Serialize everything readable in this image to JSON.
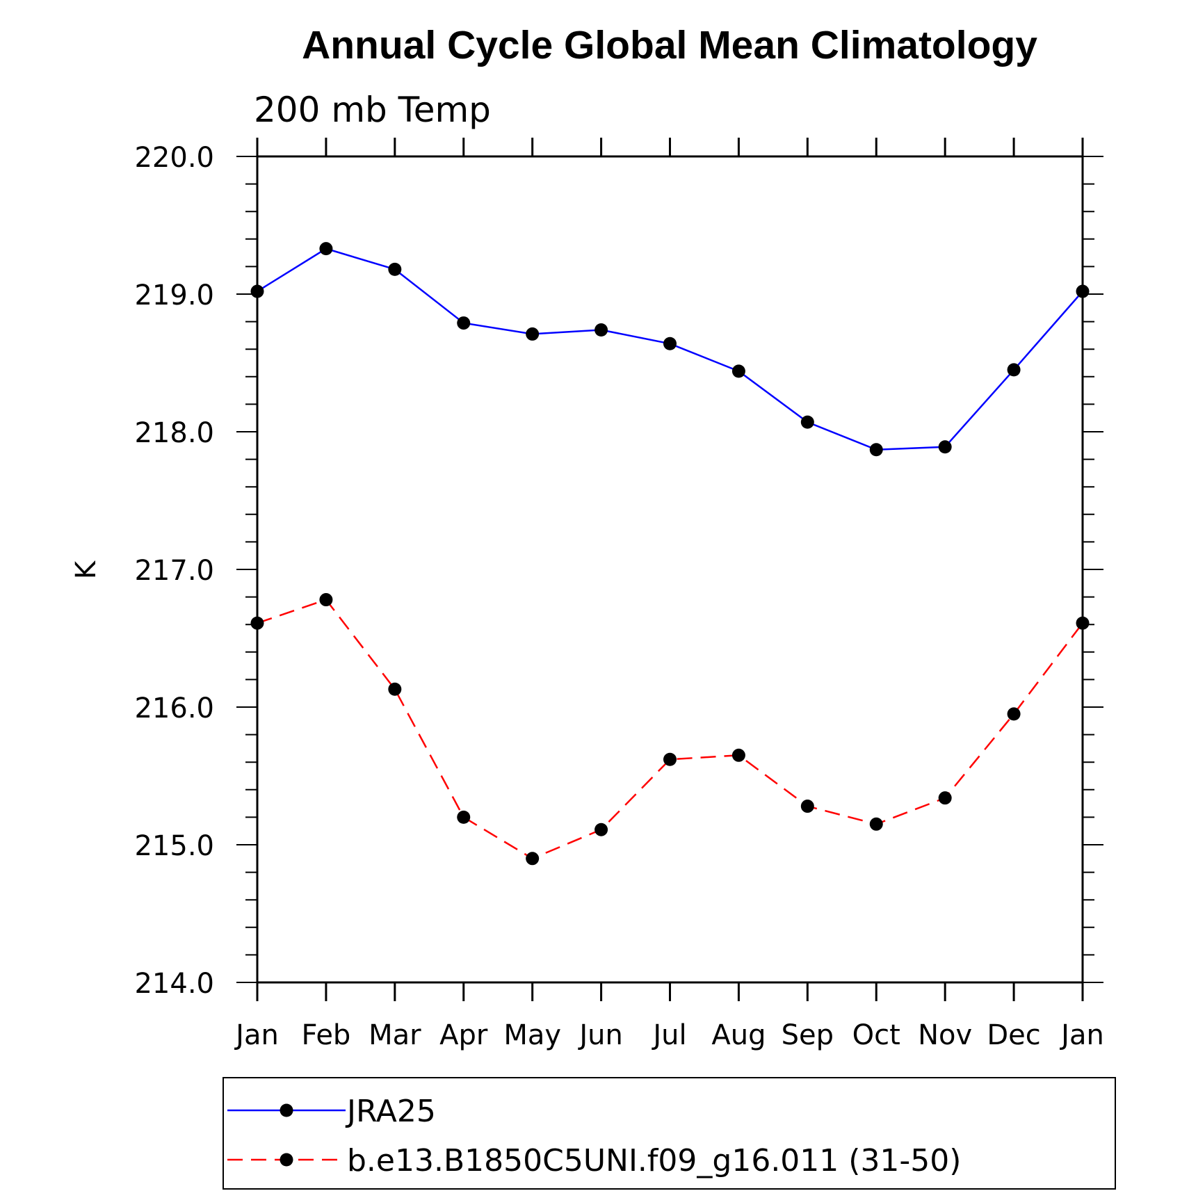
{
  "chart_data": {
    "type": "line",
    "title": "Annual Cycle Global Mean Climatology",
    "subtitle": "200 mb Temp",
    "xlabel": "",
    "ylabel": "K",
    "categories": [
      "Jan",
      "Feb",
      "Mar",
      "Apr",
      "May",
      "Jun",
      "Jul",
      "Aug",
      "Sep",
      "Oct",
      "Nov",
      "Dec",
      "Jan"
    ],
    "ylim": [
      214.0,
      220.0
    ],
    "yticks": [
      "214.0",
      "215.0",
      "216.0",
      "217.0",
      "218.0",
      "219.0",
      "220.0"
    ],
    "series": [
      {
        "name": "JRA25",
        "color": "#0000ff",
        "dash": "solid",
        "values": [
          219.02,
          219.33,
          219.18,
          218.79,
          218.71,
          218.74,
          218.64,
          218.44,
          218.07,
          217.87,
          217.89,
          218.45,
          219.02
        ]
      },
      {
        "name": "b.e13.B1850C5UNI.f09_g16.011 (31-50)",
        "color": "#ff0000",
        "dash": "dashed",
        "values": [
          216.61,
          216.78,
          216.13,
          215.2,
          214.9,
          215.11,
          215.62,
          215.65,
          215.28,
          215.15,
          215.34,
          215.95,
          216.61
        ]
      }
    ],
    "legend_position": "bottom"
  }
}
